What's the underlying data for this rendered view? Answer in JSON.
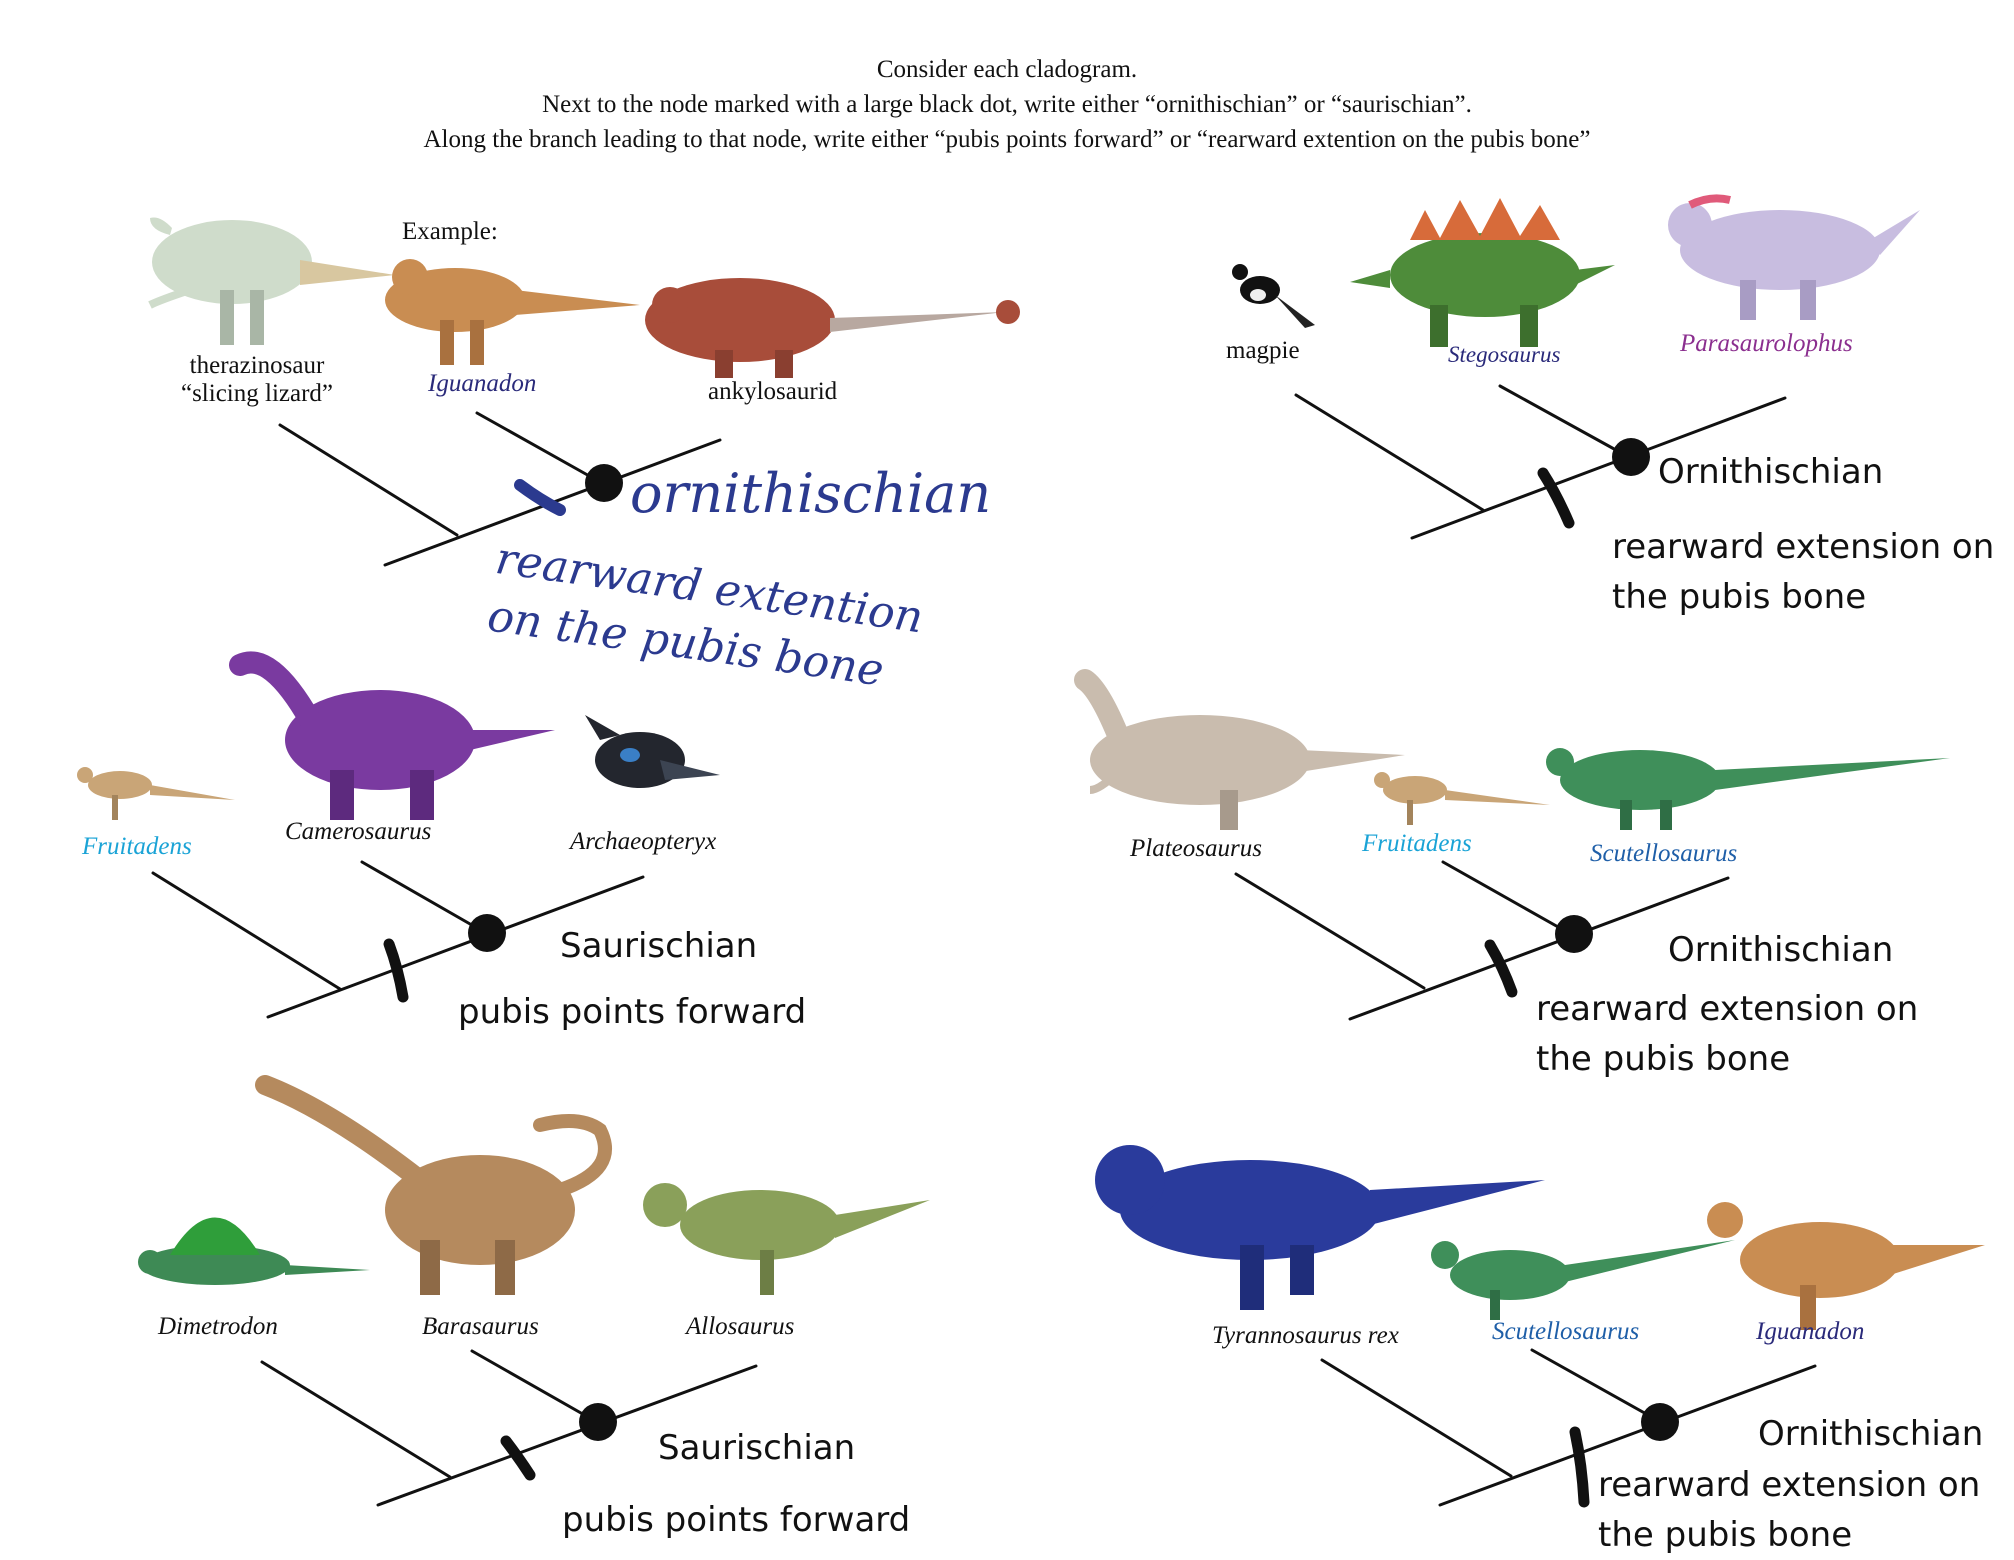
{
  "instructions": [
    "Consider each cladogram.",
    "Next to the node marked with a large black dot, write either “ornithischian” or “saurischian”.",
    "Along the branch leading to that node, write either “pubis points forward” or “rearward extention on the pubis bone”"
  ],
  "example_label": "Example:",
  "colors": {
    "ink": "#111111",
    "handwriting": "#2b3a8f",
    "light_blue_taxon": "#1aa3d6",
    "dark_blue_taxon": "#2a2a7a",
    "mid_blue_taxon": "#1f5fa8",
    "purple_taxon": "#8b2f8f"
  },
  "cladograms": [
    {
      "taxa": [
        "therazinosaur\n“slicing lizard”",
        "Iguanadon",
        "ankylosaurid"
      ],
      "node_label": "ornithischian",
      "branch_label": "rearward extention\non the pubis bone"
    },
    {
      "taxa": [
        "magpie",
        "Stegosaurus",
        "Parasaurolophus"
      ],
      "node_label": "Ornithischian",
      "branch_label": "rearward extension on\nthe pubis bone"
    },
    {
      "taxa": [
        "Fruitadens",
        "Camerosaurus",
        "Archaeopteryx"
      ],
      "node_label": "Saurischian",
      "branch_label": "pubis points forward"
    },
    {
      "taxa": [
        "Plateosaurus",
        "Fruitadens",
        "Scutellosaurus"
      ],
      "node_label": "Ornithischian",
      "branch_label": "rearward extension on\nthe pubis bone"
    },
    {
      "taxa": [
        "Dimetrodon",
        "Barasaurus",
        "Allosaurus"
      ],
      "node_label": "Saurischian",
      "branch_label": "pubis points forward"
    },
    {
      "taxa": [
        "Tyrannosaurus rex",
        "Scutellosaurus",
        "Iguanadon"
      ],
      "node_label": "Ornithischian",
      "branch_label": "rearward extension on\nthe pubis bone"
    }
  ]
}
